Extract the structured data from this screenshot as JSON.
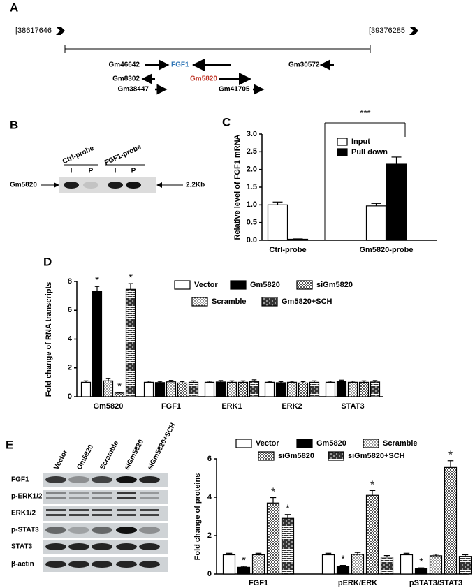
{
  "panels": [
    "A",
    "B",
    "C",
    "D",
    "E"
  ],
  "genome_map": {
    "start": "[38617646",
    "end": "[39376285",
    "genes": [
      {
        "label": "Gm46642",
        "color": "#000000"
      },
      {
        "label": "FGF1",
        "color": "#2e74b5"
      },
      {
        "label": "Gm30572",
        "color": "#000000"
      },
      {
        "label": "Gm8302",
        "color": "#000000"
      },
      {
        "label": "Gm5820",
        "color": "#c0392b"
      },
      {
        "label": "Gm38447",
        "color": "#000000"
      },
      {
        "label": "Gm41705",
        "color": "#000000"
      }
    ]
  },
  "blot_b": {
    "probes": [
      "Ctrl-probe",
      "FGF1-probe"
    ],
    "lanes": [
      "I",
      "P",
      "I",
      "P"
    ],
    "target": "Gm5820",
    "size": "2.2Kb"
  },
  "blot_e": {
    "lanes": [
      "Vector",
      "Gm5820",
      "Scramble",
      "siGm5820",
      "siGm5820+SCH"
    ],
    "rows": [
      "FGF1",
      "p-ERK1/2",
      "ERK1/2",
      "p-STAT3",
      "STAT3",
      "β-actin"
    ]
  },
  "chart_data": [
    {
      "type": "bar",
      "ylabel": "Relative level of FGF1 mRNA",
      "categories": [
        "Ctrl-probe",
        "Gm5820-probe"
      ],
      "series": [
        {
          "name": "Input",
          "color": "#ffffff",
          "values": [
            1.0,
            0.97
          ],
          "errors": [
            0.08,
            0.07
          ]
        },
        {
          "name": "Pull down",
          "color": "#000000",
          "values": [
            0.03,
            2.15
          ],
          "errors": [
            0.01,
            0.2
          ]
        }
      ],
      "ylim": [
        0,
        3
      ],
      "yticks": [
        {
          "value": 0,
          "label": "0.0"
        },
        0.5,
        {
          "value": 1,
          "label": "1.0"
        },
        1.5,
        {
          "value": 2,
          "label": "2.0"
        },
        2.5,
        {
          "value": 3,
          "label": "3.0"
        }
      ],
      "annotation": "***"
    },
    {
      "type": "bar",
      "ylabel": "Fold change of RNA transcripts",
      "categories": [
        "Gm5820",
        "FGF1",
        "ERK1",
        "ERK2",
        "STAT3"
      ],
      "series": [
        {
          "name": "Vector",
          "color": "#ffffff",
          "values": [
            1.0,
            1.0,
            1.0,
            1.0,
            1.0
          ],
          "errors": [
            0.1,
            0.08,
            0.08,
            0.07,
            0.08
          ]
        },
        {
          "name": "Gm5820",
          "color": "#000000",
          "values": [
            7.3,
            0.98,
            1.02,
            0.97,
            1.05
          ],
          "errors": [
            0.35,
            0.08,
            0.1,
            0.08,
            0.1
          ],
          "markers": [
            "*",
            null,
            null,
            null,
            null
          ]
        },
        {
          "name": "Scramble",
          "color": "#ffffff",
          "pattern": "dots",
          "values": [
            1.1,
            1.03,
            1.0,
            1.0,
            1.0
          ],
          "errors": [
            0.15,
            0.1,
            0.1,
            0.08,
            0.08
          ]
        },
        {
          "name": "siGm5820",
          "color": "#ffffff",
          "pattern": "checker",
          "values": [
            0.25,
            0.95,
            1.0,
            0.95,
            1.0
          ],
          "errors": [
            0.05,
            0.1,
            0.1,
            0.1,
            0.1
          ],
          "markers": [
            "*",
            null,
            null,
            null,
            null
          ]
        },
        {
          "name": "Gm5820+SCH",
          "color": "#333333",
          "pattern": "brick",
          "values": [
            7.45,
            1.0,
            1.05,
            1.0,
            1.02
          ],
          "errors": [
            0.4,
            0.1,
            0.12,
            0.1,
            0.1
          ],
          "markers": [
            "*",
            null,
            null,
            null,
            null
          ]
        }
      ],
      "ylim": [
        0,
        8
      ],
      "yticks": [
        0,
        2,
        4,
        6,
        8
      ]
    },
    {
      "type": "bar",
      "ylabel": "Fold change of proteins",
      "categories": [
        "FGF1",
        "pERK/ERK",
        "pSTAT3/STAT3"
      ],
      "series": [
        {
          "name": "Vector",
          "color": "#ffffff",
          "values": [
            1.0,
            1.0,
            1.0
          ],
          "errors": [
            0.08,
            0.08,
            0.08
          ]
        },
        {
          "name": "Gm5820",
          "color": "#000000",
          "values": [
            0.35,
            0.4,
            0.28
          ],
          "errors": [
            0.05,
            0.05,
            0.04
          ],
          "markers": [
            "*",
            "*",
            "*"
          ]
        },
        {
          "name": "Scramble",
          "color": "#ffffff",
          "pattern": "dots",
          "values": [
            1.0,
            1.02,
            0.95
          ],
          "errors": [
            0.08,
            0.1,
            0.08
          ]
        },
        {
          "name": "siGm5820",
          "color": "#ffffff",
          "pattern": "checker",
          "values": [
            3.7,
            4.1,
            5.55
          ],
          "errors": [
            0.28,
            0.25,
            0.35
          ],
          "markers": [
            "*",
            "*",
            "*"
          ]
        },
        {
          "name": "siGm5820+SCH",
          "color": "#333333",
          "pattern": "brick",
          "values": [
            2.9,
            0.88,
            0.92
          ],
          "errors": [
            0.2,
            0.08,
            0.08
          ],
          "markers": [
            "*",
            null,
            null
          ]
        }
      ],
      "ylim": [
        0,
        6
      ],
      "yticks": [
        0,
        2,
        4,
        6
      ]
    }
  ]
}
